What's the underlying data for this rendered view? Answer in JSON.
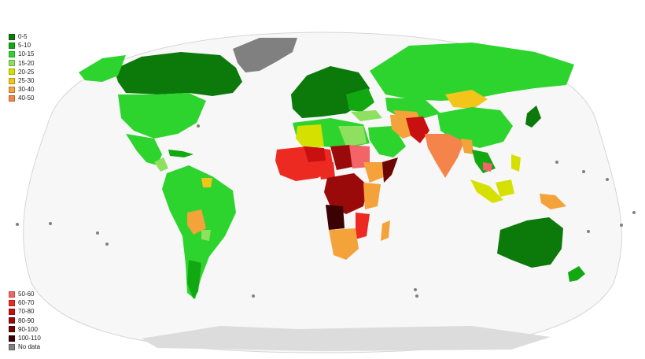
{
  "legend_top": [
    {
      "label": "0-5",
      "color": "#0b7a0b"
    },
    {
      "label": "5-10",
      "color": "#12a812"
    },
    {
      "label": "10-15",
      "color": "#2ed42e"
    },
    {
      "label": "15-20",
      "color": "#8ee060"
    },
    {
      "label": "20-25",
      "color": "#d6e000"
    },
    {
      "label": "25-30",
      "color": "#f3c41a"
    },
    {
      "label": "30-40",
      "color": "#f4a23a"
    },
    {
      "label": "40-50",
      "color": "#f4844a"
    }
  ],
  "legend_bottom": [
    {
      "label": "50-60",
      "color": "#f26467"
    },
    {
      "label": "60-70",
      "color": "#ec2a22"
    },
    {
      "label": "70-80",
      "color": "#c81010"
    },
    {
      "label": "80-90",
      "color": "#9a0a0a"
    },
    {
      "label": "90-100",
      "color": "#6e0606"
    },
    {
      "label": "100-110",
      "color": "#3a0202"
    },
    {
      "label": "No data",
      "color": "#808080"
    }
  ],
  "map": {
    "ocean_color": "#ffffff",
    "antarctica_color": "#dcdcdc"
  }
}
